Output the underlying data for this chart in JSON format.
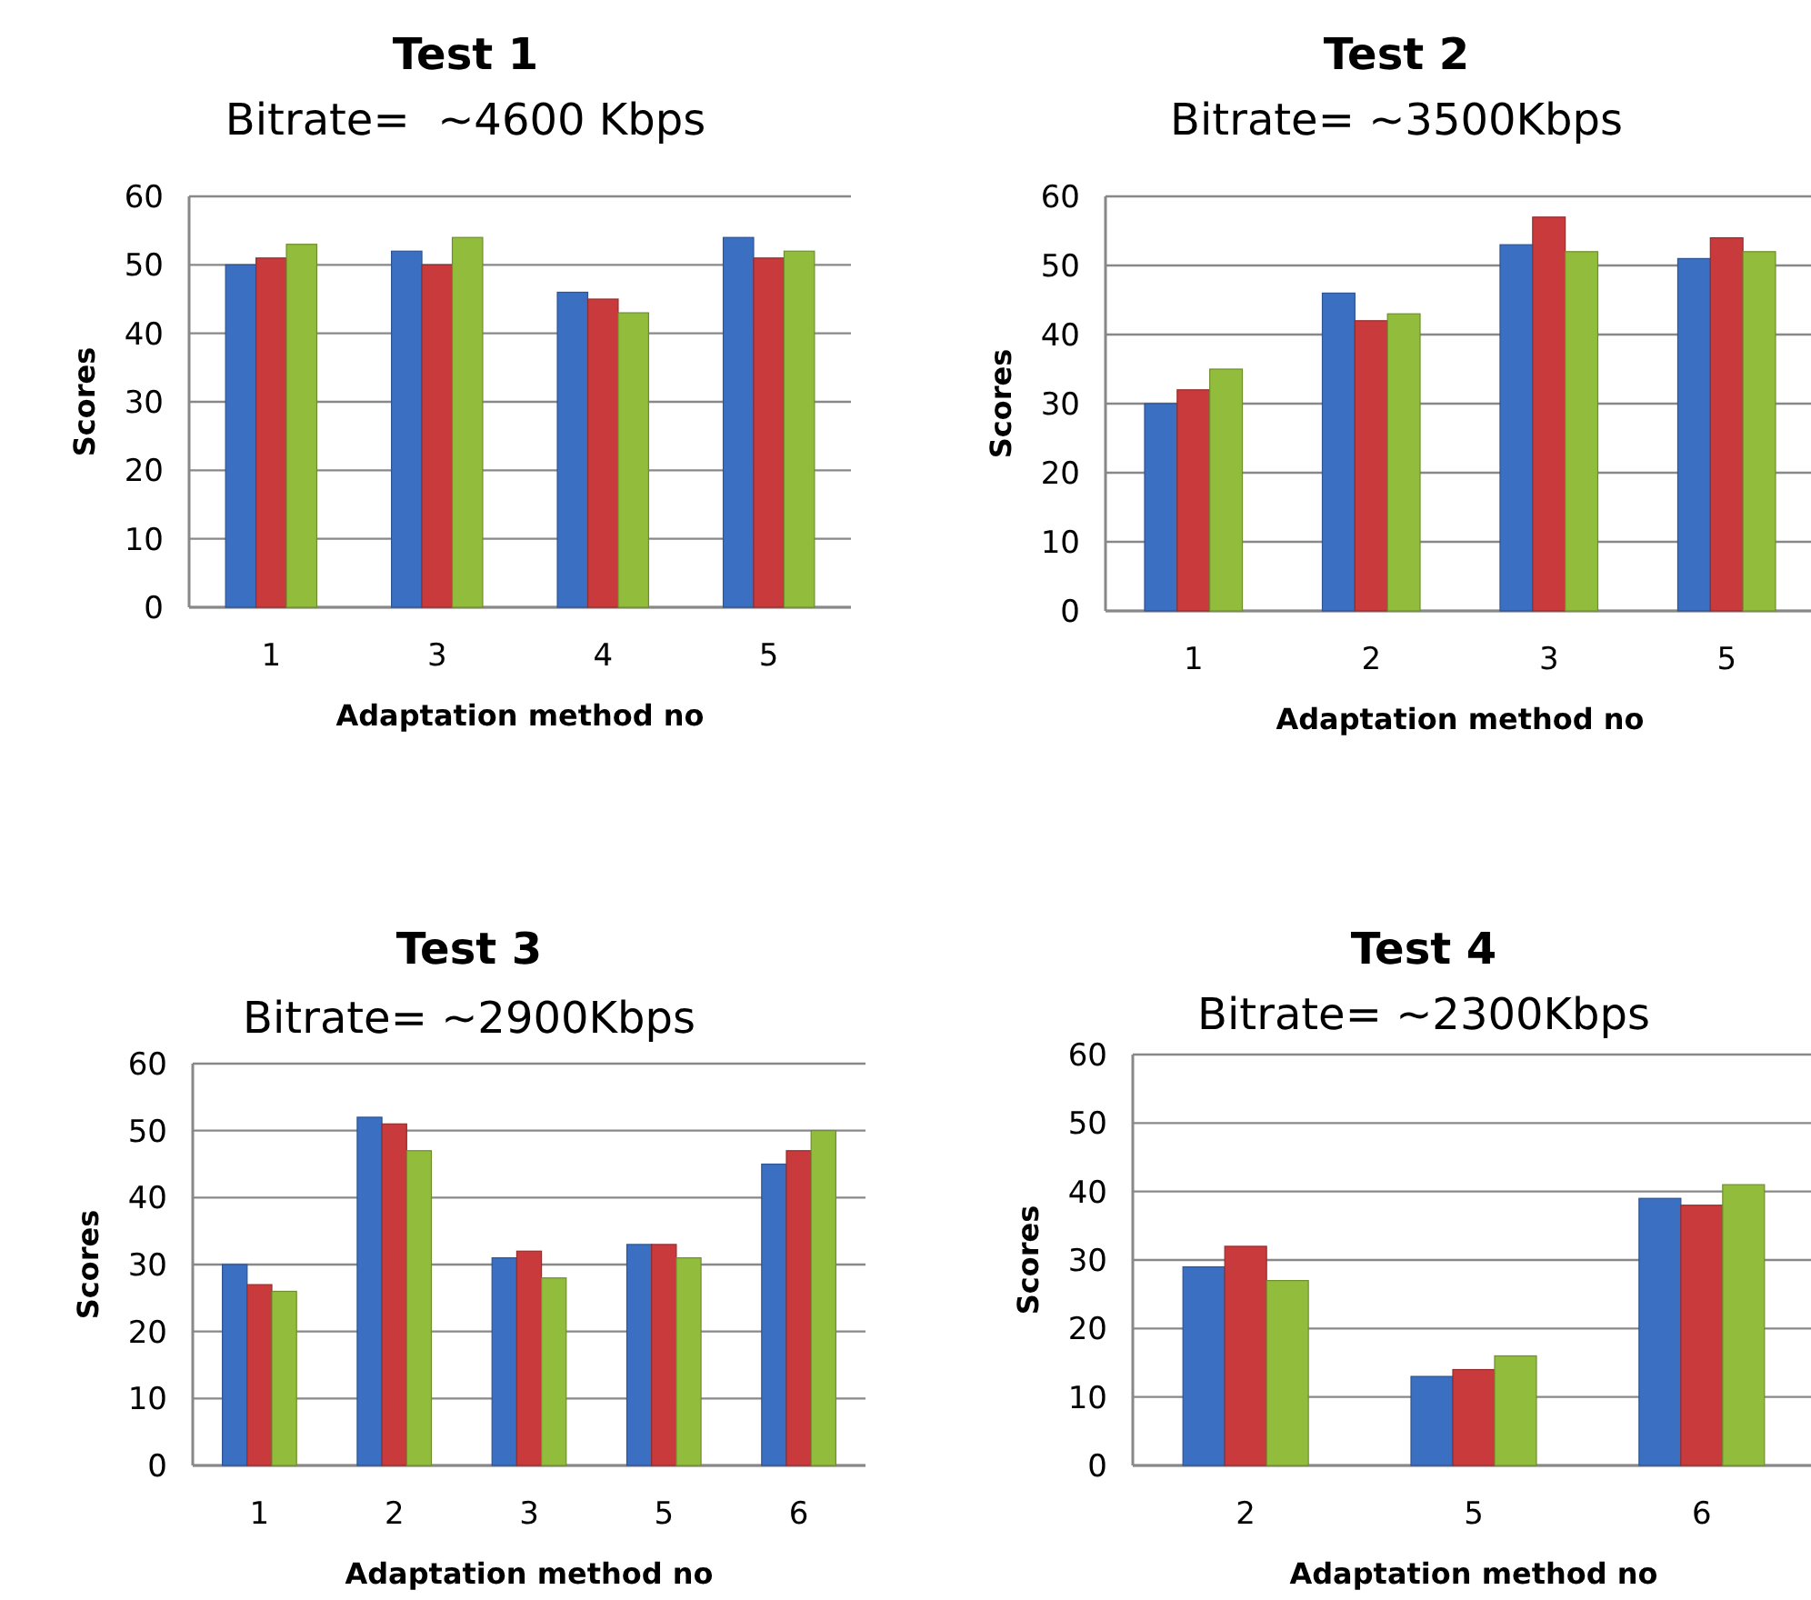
{
  "chart_data": [
    {
      "type": "bar",
      "title": "Test 1",
      "subtitle": "Bitrate=  ~4600 Kbps",
      "xlabel": "Adaptation method no",
      "ylabel": "Scores",
      "categories": [
        "1",
        "3",
        "4",
        "5"
      ],
      "series": [
        {
          "color": "#3b6fc2",
          "values": [
            50,
            52,
            46,
            54
          ]
        },
        {
          "color": "#c83a3b",
          "values": [
            51,
            50,
            45,
            51
          ]
        },
        {
          "color": "#92bd3c",
          "values": [
            53,
            54,
            43,
            52
          ]
        }
      ],
      "ylim": [
        0,
        60
      ],
      "yticks": [
        0,
        10,
        20,
        30,
        40,
        50,
        60
      ],
      "grid": "y"
    },
    {
      "type": "bar",
      "title": "Test 2",
      "subtitle": "Bitrate= ~3500Kbps",
      "xlabel": "Adaptation method no",
      "ylabel": "Scores",
      "categories": [
        "1",
        "2",
        "3",
        "5"
      ],
      "series": [
        {
          "color": "#3b6fc2",
          "values": [
            30,
            46,
            53,
            51
          ]
        },
        {
          "color": "#c83a3b",
          "values": [
            32,
            42,
            57,
            54
          ]
        },
        {
          "color": "#92bd3c",
          "values": [
            35,
            43,
            52,
            52
          ]
        }
      ],
      "ylim": [
        0,
        60
      ],
      "yticks": [
        0,
        10,
        20,
        30,
        40,
        50,
        60
      ],
      "grid": "y"
    },
    {
      "type": "bar",
      "title": "Test 3",
      "subtitle": "Bitrate= ~2900Kbps",
      "xlabel": "Adaptation method no",
      "ylabel": "Scores",
      "categories": [
        "1",
        "2",
        "3",
        "5",
        "6"
      ],
      "series": [
        {
          "color": "#3b6fc2",
          "values": [
            30,
            52,
            31,
            33,
            45
          ]
        },
        {
          "color": "#c83a3b",
          "values": [
            27,
            51,
            32,
            33,
            47
          ]
        },
        {
          "color": "#92bd3c",
          "values": [
            26,
            47,
            28,
            31,
            50
          ]
        }
      ],
      "ylim": [
        0,
        60
      ],
      "yticks": [
        0,
        10,
        20,
        30,
        40,
        50,
        60
      ],
      "grid": "y"
    },
    {
      "type": "bar",
      "title": "Test 4",
      "subtitle": "Bitrate= ~2300Kbps",
      "xlabel": "Adaptation method no",
      "ylabel": "Scores",
      "categories": [
        "2",
        "5",
        "6"
      ],
      "series": [
        {
          "color": "#3b6fc2",
          "values": [
            29,
            13,
            39
          ]
        },
        {
          "color": "#c83a3b",
          "values": [
            32,
            14,
            38
          ]
        },
        {
          "color": "#92bd3c",
          "values": [
            27,
            16,
            41
          ]
        }
      ],
      "ylim": [
        0,
        60
      ],
      "yticks": [
        0,
        10,
        20,
        30,
        40,
        50,
        60
      ],
      "grid": "y"
    }
  ]
}
